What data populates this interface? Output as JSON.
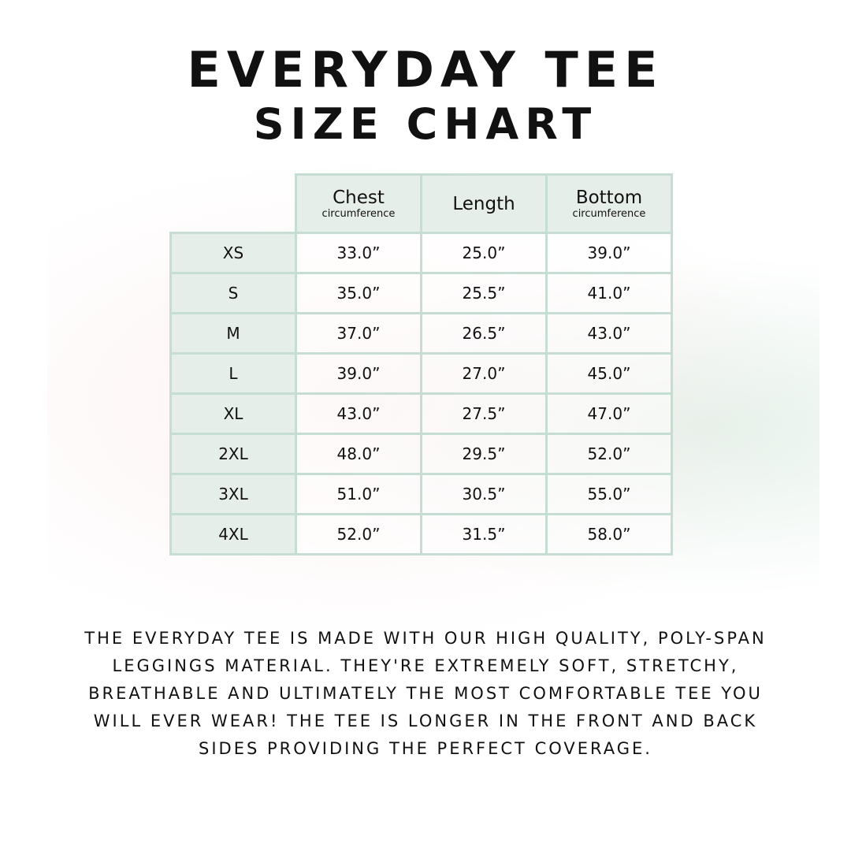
{
  "title_line1": "EVERYDAY TEE",
  "title_line2": "SIZE CHART",
  "colors": {
    "header_bg": "#e6eeea",
    "border": "#c5ddd2"
  },
  "table": {
    "headers": [
      {
        "main": "Chest",
        "sub": "circumference"
      },
      {
        "main": "Length",
        "sub": ""
      },
      {
        "main": "Bottom",
        "sub": "circumference"
      }
    ],
    "rows": [
      {
        "size": "XS",
        "values": [
          "33.0”",
          "25.0”",
          "39.0”"
        ]
      },
      {
        "size": "S",
        "values": [
          "35.0”",
          "25.5”",
          "41.0”"
        ]
      },
      {
        "size": "M",
        "values": [
          "37.0”",
          "26.5”",
          "43.0”"
        ]
      },
      {
        "size": "L",
        "values": [
          "39.0”",
          "27.0”",
          "45.0”"
        ]
      },
      {
        "size": "XL",
        "values": [
          "43.0”",
          "27.5”",
          "47.0”"
        ]
      },
      {
        "size": "2XL",
        "values": [
          "48.0”",
          "29.5”",
          "52.0”"
        ]
      },
      {
        "size": "3XL",
        "values": [
          "51.0”",
          "30.5”",
          "55.0”"
        ]
      },
      {
        "size": "4XL",
        "values": [
          "52.0”",
          "31.5”",
          "58.0”"
        ]
      }
    ]
  },
  "description": "The everyday tee is made with our high quality, poly-span leggings material. They're extremely soft, stretchy, breathable and ultimately the most comfortable tee you will ever wear! The tee is longer in the front and back sides providing the perfect coverage."
}
